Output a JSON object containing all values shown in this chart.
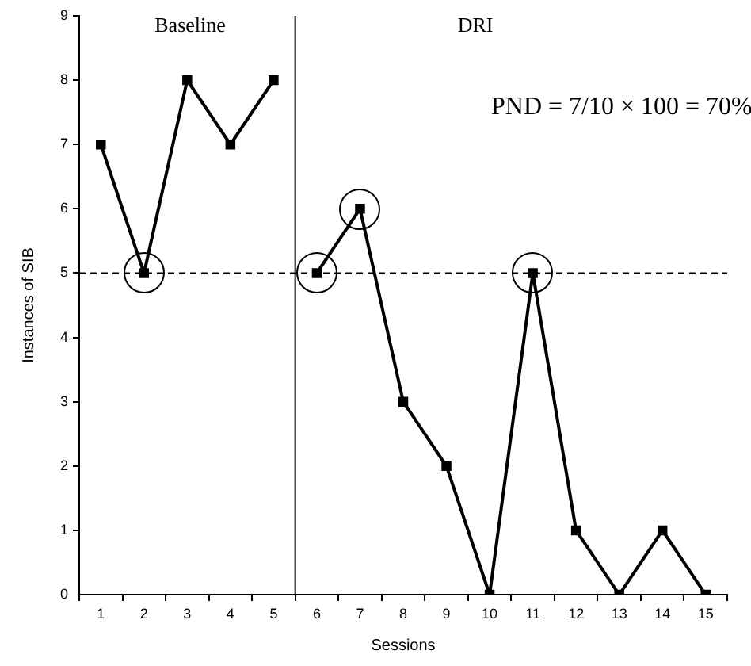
{
  "chart_data": {
    "type": "line",
    "xlabel": "Sessions",
    "ylabel": "Instances of SIB",
    "annotations": [
      "Baseline",
      "DRI",
      "PND = 7/10 × 100 = 70%"
    ],
    "series": [
      {
        "color": "#000000",
        "x": [
          1,
          2,
          3,
          4,
          5
        ],
        "values": [
          7,
          5,
          8,
          7,
          8
        ]
      },
      {
        "color": "#000000",
        "x": [
          6,
          7,
          8,
          9,
          10,
          11,
          12,
          13,
          14,
          15
        ],
        "values": [
          5,
          6,
          3,
          2,
          0,
          5,
          1,
          0,
          1,
          0
        ]
      }
    ],
    "xlim": [
      0.5,
      15.5
    ],
    "xticks": [
      {
        "value": 0.5,
        "label": null
      },
      1,
      {
        "value": 1.5,
        "label": null
      },
      2,
      {
        "value": 2.5,
        "label": null
      },
      3,
      {
        "value": 3.5,
        "label": null
      },
      4,
      {
        "value": 4.5,
        "label": null
      },
      5,
      {
        "value": 5.5,
        "label": null
      },
      6,
      {
        "value": 6.5,
        "label": null
      },
      7,
      {
        "value": 7.5,
        "label": null
      },
      8,
      {
        "value": 8.5,
        "label": null
      },
      9,
      {
        "value": 9.5,
        "label": null
      },
      10,
      {
        "value": 10.5,
        "label": null
      },
      11,
      {
        "value": 11.5,
        "label": null
      },
      12,
      {
        "value": 12.5,
        "label": null
      },
      13,
      {
        "value": 13.5,
        "label": null
      },
      14,
      {
        "value": 14.5,
        "label": null
      },
      15,
      {
        "value": 15.5,
        "label": null
      }
    ],
    "ylim": [
      0,
      9
    ],
    "yticks": [
      0,
      1,
      2,
      3,
      4,
      5,
      6,
      7,
      8,
      9
    ],
    "ref_lines": [
      {
        "axis": "y",
        "value": 5,
        "line_style": "dashed",
        "color": "#000000"
      },
      {
        "axis": "x",
        "value": 5.5,
        "line_style": "solid",
        "color": "#000000"
      }
    ],
    "grid": false,
    "legend": false,
    "marker": "square",
    "line_style": "solid"
  }
}
